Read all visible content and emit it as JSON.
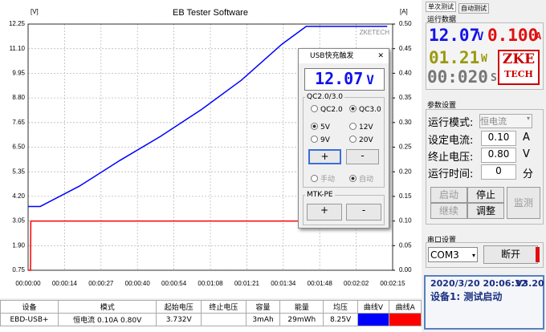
{
  "chart_data": {
    "type": "line",
    "title": "EB Tester Software",
    "y_label": "[V]",
    "y2_label": "[A]",
    "watermark": "ZKETECH",
    "x": [
      0,
      0.9,
      1,
      4.5,
      19,
      34,
      49,
      64,
      79,
      94,
      103,
      133
    ],
    "series": [
      {
        "name": "曲线V",
        "color": "#0000ff",
        "values": [
          3.73,
          3.73,
          3.73,
          3.73,
          4.68,
          5.88,
          7.0,
          8.24,
          9.63,
          11.31,
          12.14,
          12.14
        ]
      },
      {
        "name": "曲线A",
        "color": "#ff0000",
        "axis": "y2",
        "values": [
          0,
          0,
          0.1,
          0.1,
          0.1,
          0.1,
          0.1,
          0.1,
          0.1,
          0.1,
          0.1,
          0.1
        ]
      }
    ],
    "xlim": [
      0,
      135
    ],
    "xticks": [
      {
        "value": 0,
        "label": "00:00:00"
      },
      {
        "value": 13.5,
        "label": "00:00:14"
      },
      {
        "value": 27,
        "label": "00:00:27"
      },
      {
        "value": 40.5,
        "label": "00:00:40"
      },
      {
        "value": 54,
        "label": "00:00:54"
      },
      {
        "value": 67.5,
        "label": "00:01:08"
      },
      {
        "value": 81,
        "label": "00:01:21"
      },
      {
        "value": 94.5,
        "label": "00:01:34"
      },
      {
        "value": 108,
        "label": "00:01:48"
      },
      {
        "value": 121.5,
        "label": "00:02:02"
      },
      {
        "value": 135,
        "label": "00:02:15"
      }
    ],
    "ylim": [
      0.75,
      12.25
    ],
    "yticks": [
      0.75,
      {
        "value": 1.9,
        "label": "1.90"
      },
      3.05,
      {
        "value": 4.2,
        "label": "4.20"
      },
      5.35,
      {
        "value": 6.5,
        "label": "6.50"
      },
      7.65,
      {
        "value": 8.8,
        "label": "8.80"
      },
      9.95,
      {
        "value": 11.1,
        "label": "11.10"
      },
      12.25
    ],
    "y2lim": [
      0,
      0.5
    ],
    "y2ticks": [
      {
        "value": 0,
        "label": "0.00"
      },
      0.05,
      {
        "value": 0.1,
        "label": "0.10"
      },
      0.15,
      {
        "value": 0.2,
        "label": "0.20"
      },
      0.25,
      {
        "value": 0.3,
        "label": "0.30"
      },
      0.35,
      {
        "value": 0.4,
        "label": "0.40"
      },
      0.45,
      {
        "value": 0.5,
        "label": "0.50"
      }
    ],
    "grid": true
  },
  "dialog": {
    "title": "USB快充触发",
    "display": "12.07",
    "display_unit": "V",
    "qc_group": "QC2.0/3.0",
    "qc_options": [
      "QC2.0",
      "QC3.0"
    ],
    "voltages": [
      "5V",
      "12V",
      "9V",
      "20V"
    ],
    "plus": "+",
    "minus": "-",
    "modes": [
      "手动",
      "自动"
    ],
    "mtk_group": "MTK-PE",
    "mtk_plus": "+",
    "mtk_minus": "-"
  },
  "panel": {
    "tabs": [
      "单次测试",
      "自动测试"
    ],
    "run_group": "运行数据",
    "voltage": "12.07",
    "voltage_unit": "V",
    "current": "0.100",
    "current_unit": "A",
    "power": "01.21",
    "power_unit": "W",
    "time": "00:020",
    "time_unit": "S",
    "logo": [
      "ZKE",
      "TECH"
    ],
    "param_group": "参数设置",
    "mode_label": "运行模式:",
    "mode": "恒电流",
    "current_label": "设定电流:",
    "current_set": "0.10",
    "current_set_unit": "A",
    "cutoff_label": "终止电压:",
    "cutoff": "0.80",
    "cutoff_unit": "V",
    "runtime_label": "运行时间:",
    "runtime": "0",
    "runtime_unit": "分",
    "buttons": [
      "启动",
      "停止",
      "监测",
      "继续",
      "调整"
    ],
    "serial_group": "串口设置",
    "port": "COM3",
    "disconnect": "断开",
    "status": {
      "datetime": "2020/3/20 20:06:32",
      "version": "V3.20",
      "message": "设备1: 测试启动"
    }
  },
  "table": {
    "headers": [
      "设备",
      "模式",
      "起始电压",
      "终止电压",
      "容量",
      "能量",
      "均压",
      "曲线V",
      "曲线A"
    ],
    "row": {
      "device": "EBD-USB+",
      "mode": "恒电流 0.10A 0.80V",
      "start_v": "3.732V",
      "capacity": "3mAh",
      "energy": "29mWh",
      "avg_v": "8.25V"
    }
  }
}
